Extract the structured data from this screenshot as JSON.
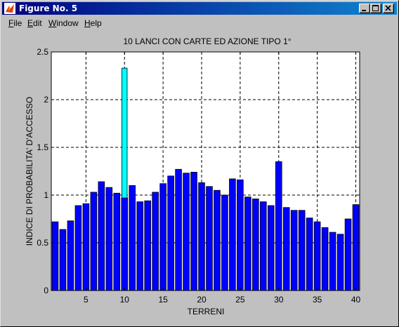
{
  "window": {
    "title": "Figure No. 5",
    "icon": "matlab-icon",
    "controls": [
      "minimize-icon",
      "maximize-icon",
      "close-icon"
    ]
  },
  "menu": [
    {
      "label": "File",
      "underline": "F",
      "rest": "ile"
    },
    {
      "label": "Edit",
      "underline": "E",
      "rest": "dit"
    },
    {
      "label": "Window",
      "underline": "W",
      "rest": "indow"
    },
    {
      "label": "Help",
      "underline": "H",
      "rest": "elp"
    }
  ],
  "colors": {
    "bar": "#0000ff",
    "highlight_bar": "#00ffff",
    "axes_bg": "#ffffff",
    "figure_bg": "#c0c0c0"
  },
  "chart_data": {
    "type": "bar",
    "title": "10 LANCI  CON  CARTE ED AZIONE TIPO 1°",
    "xlabel": "TERRENI",
    "ylabel": "INDICE DI PROBABILITA' D'ACCESSO",
    "x": [
      1,
      2,
      3,
      4,
      5,
      6,
      7,
      8,
      9,
      10,
      11,
      12,
      13,
      14,
      15,
      16,
      17,
      18,
      19,
      20,
      21,
      22,
      23,
      24,
      25,
      26,
      27,
      28,
      29,
      30,
      31,
      32,
      33,
      34,
      35,
      36,
      37,
      38,
      39,
      40
    ],
    "values": [
      0.72,
      0.64,
      0.73,
      0.89,
      0.91,
      1.03,
      1.14,
      1.08,
      1.02,
      0.97,
      1.1,
      0.93,
      0.94,
      1.03,
      1.12,
      1.2,
      1.27,
      1.23,
      1.24,
      1.13,
      1.09,
      1.05,
      1.0,
      1.17,
      1.16,
      0.98,
      0.96,
      0.93,
      0.89,
      1.35,
      0.87,
      0.84,
      0.84,
      0.76,
      0.72,
      0.66,
      0.61,
      0.59,
      0.75,
      0.9
    ],
    "highlight": {
      "x": 10,
      "value": 2.33
    },
    "xticks": [
      "5",
      "10",
      "15",
      "20",
      "25",
      "30",
      "35",
      "40"
    ],
    "yticks": [
      "0",
      "0.5",
      "1",
      "1.5",
      "2",
      "2.5"
    ],
    "xlim": [
      0.5,
      40.5
    ],
    "ylim": [
      0,
      2.5
    ],
    "grid": true,
    "grid_style": "dashed"
  }
}
